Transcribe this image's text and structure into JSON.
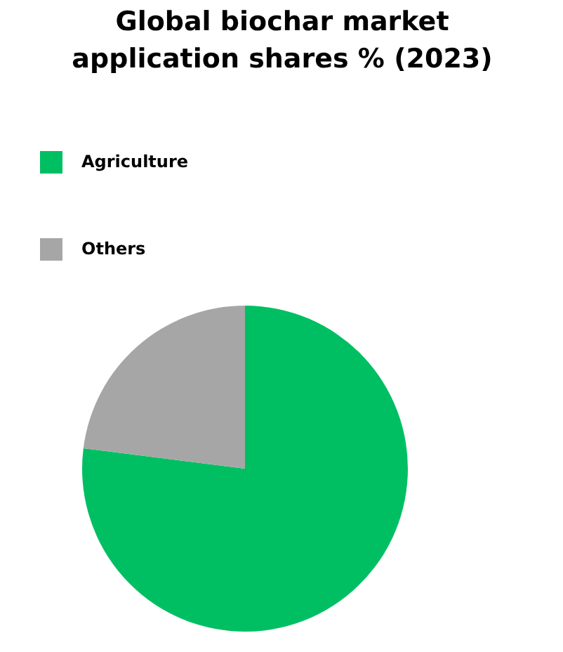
{
  "chart_data": {
    "type": "pie",
    "title": "Global biochar market application shares % (2023)",
    "categories": [
      "Agriculture",
      "Others"
    ],
    "values": [
      77,
      23
    ],
    "colors": [
      "#00bf63",
      "#a6a6a6"
    ],
    "legend": "top left"
  }
}
